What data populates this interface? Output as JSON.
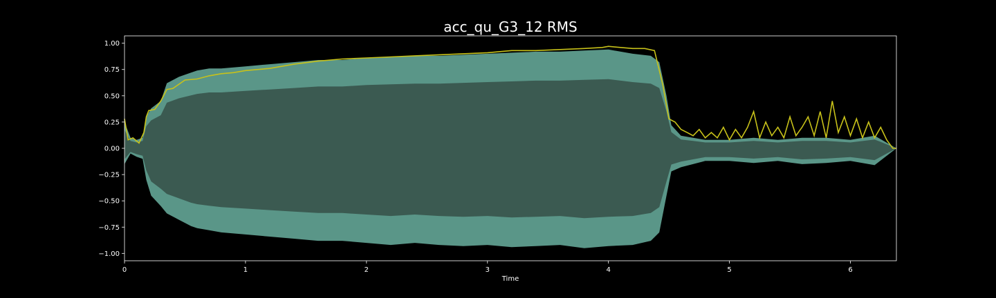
{
  "chart_data": {
    "type": "area",
    "title": "acc_qu_G3_12 RMS",
    "xlabel": "Time",
    "ylabel": "",
    "xlim": [
      0,
      6.38
    ],
    "ylim": [
      -1.07,
      1.07
    ],
    "xticks": [
      0,
      1,
      2,
      3,
      4,
      5,
      6
    ],
    "xtick_labels": [
      "0",
      "1",
      "2",
      "3",
      "4",
      "5",
      "6"
    ],
    "yticks": [
      1.0,
      0.75,
      0.5,
      0.25,
      0.0,
      -0.25,
      -0.5,
      -0.75,
      -1.0
    ],
    "ytick_labels": [
      "1.00",
      "0.75",
      "0.50",
      "0.25",
      "0.00",
      "−0.25",
      "−0.50",
      "−0.75",
      "−1.00"
    ],
    "grid": false,
    "legend": "none",
    "colors": {
      "background": "#000000",
      "waveform_peak": "#5f9e8f",
      "waveform_body": "#3b5a51",
      "rms_line": "#c8c21a",
      "axes": "#ffffff"
    },
    "series": [
      {
        "kind": "waveform-envelope",
        "x": [
          0.0,
          0.05,
          0.1,
          0.15,
          0.18,
          0.22,
          0.3,
          0.35,
          0.45,
          0.55,
          0.6,
          0.7,
          0.8,
          1.0,
          1.2,
          1.4,
          1.6,
          1.8,
          2.0,
          2.2,
          2.4,
          2.6,
          2.8,
          3.0,
          3.2,
          3.4,
          3.6,
          3.8,
          4.0,
          4.2,
          4.35,
          4.42,
          4.48,
          4.52,
          4.6,
          4.7,
          4.8,
          5.0,
          5.2,
          5.4,
          5.6,
          5.8,
          6.0,
          6.2,
          6.38
        ],
        "upper": [
          0.25,
          0.1,
          0.08,
          0.1,
          0.3,
          0.38,
          0.45,
          0.62,
          0.68,
          0.72,
          0.74,
          0.76,
          0.76,
          0.78,
          0.8,
          0.82,
          0.84,
          0.84,
          0.86,
          0.87,
          0.88,
          0.88,
          0.89,
          0.9,
          0.91,
          0.92,
          0.92,
          0.93,
          0.94,
          0.9,
          0.88,
          0.82,
          0.5,
          0.22,
          0.12,
          0.1,
          0.08,
          0.08,
          0.1,
          0.08,
          0.1,
          0.1,
          0.08,
          0.12,
          0.0
        ],
        "lower": [
          -0.15,
          -0.05,
          -0.08,
          -0.1,
          -0.3,
          -0.45,
          -0.55,
          -0.62,
          -0.68,
          -0.74,
          -0.76,
          -0.78,
          -0.8,
          -0.82,
          -0.84,
          -0.86,
          -0.88,
          -0.88,
          -0.9,
          -0.92,
          -0.9,
          -0.92,
          -0.93,
          -0.92,
          -0.94,
          -0.93,
          -0.92,
          -0.95,
          -0.93,
          -0.92,
          -0.88,
          -0.8,
          -0.45,
          -0.22,
          -0.18,
          -0.15,
          -0.12,
          -0.12,
          -0.14,
          -0.12,
          -0.15,
          -0.14,
          -0.12,
          -0.16,
          0.0
        ]
      },
      {
        "kind": "rms-line",
        "x": [
          0.0,
          0.03,
          0.07,
          0.12,
          0.16,
          0.18,
          0.2,
          0.25,
          0.3,
          0.35,
          0.4,
          0.5,
          0.6,
          0.7,
          0.8,
          0.9,
          1.0,
          1.2,
          1.4,
          1.6,
          1.8,
          2.0,
          2.2,
          2.4,
          2.6,
          2.8,
          3.0,
          3.2,
          3.4,
          3.6,
          3.8,
          3.95,
          4.0,
          4.1,
          4.2,
          4.3,
          4.38,
          4.45,
          4.5,
          4.55,
          4.6,
          4.65,
          4.7,
          4.75,
          4.8,
          4.85,
          4.9,
          4.95,
          5.0,
          5.05,
          5.1,
          5.15,
          5.2,
          5.25,
          5.3,
          5.35,
          5.4,
          5.45,
          5.5,
          5.55,
          5.6,
          5.65,
          5.7,
          5.75,
          5.8,
          5.85,
          5.9,
          5.95,
          6.0,
          6.05,
          6.1,
          6.15,
          6.2,
          6.25,
          6.3,
          6.35,
          6.38
        ],
        "y": [
          0.28,
          0.08,
          0.1,
          0.05,
          0.15,
          0.3,
          0.36,
          0.37,
          0.45,
          0.56,
          0.57,
          0.65,
          0.66,
          0.69,
          0.71,
          0.72,
          0.74,
          0.76,
          0.8,
          0.83,
          0.85,
          0.86,
          0.87,
          0.88,
          0.89,
          0.9,
          0.91,
          0.93,
          0.93,
          0.94,
          0.95,
          0.96,
          0.97,
          0.96,
          0.95,
          0.95,
          0.93,
          0.6,
          0.28,
          0.25,
          0.18,
          0.15,
          0.12,
          0.18,
          0.1,
          0.15,
          0.1,
          0.2,
          0.08,
          0.18,
          0.1,
          0.2,
          0.35,
          0.1,
          0.25,
          0.12,
          0.2,
          0.1,
          0.3,
          0.12,
          0.2,
          0.3,
          0.12,
          0.35,
          0.1,
          0.45,
          0.15,
          0.3,
          0.12,
          0.28,
          0.1,
          0.25,
          0.1,
          0.2,
          0.08,
          0.0,
          0.0
        ]
      }
    ]
  }
}
